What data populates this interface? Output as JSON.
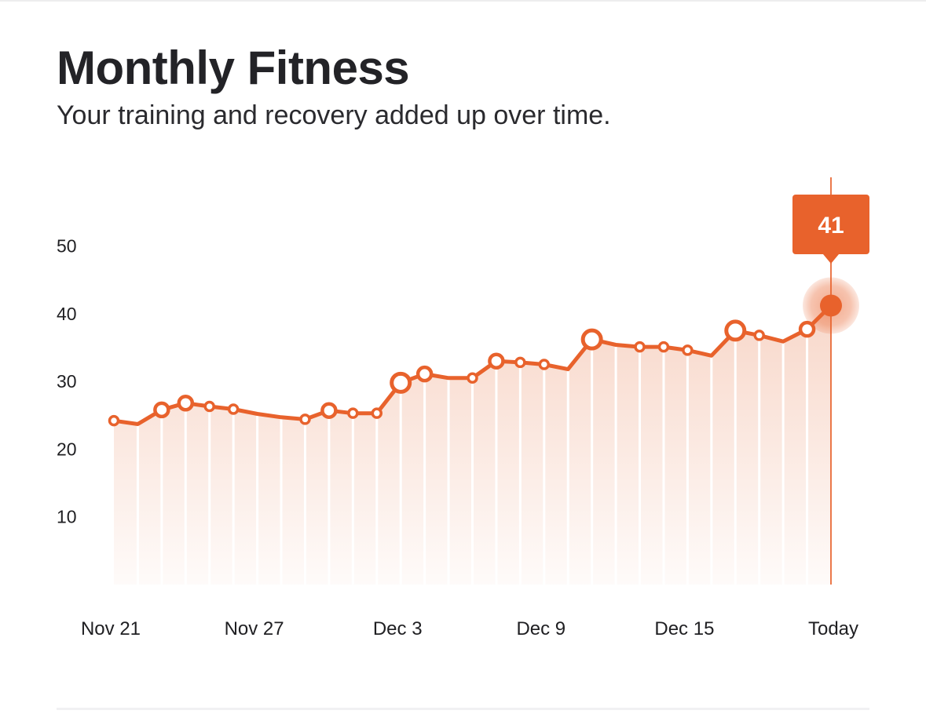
{
  "header": {
    "title": "Monthly Fitness",
    "subtitle": "Your training and recovery added up over time."
  },
  "colors": {
    "accent": "#e8622c",
    "text": "#232327"
  },
  "chart_data": {
    "type": "line",
    "title": "Monthly Fitness",
    "subtitle": "Your training and recovery added up over time.",
    "xlabel": "",
    "ylabel": "",
    "ylim": [
      0,
      50
    ],
    "yticks": [
      10,
      20,
      30,
      40,
      50
    ],
    "x_tick_labels": [
      {
        "day": 0,
        "label": "Nov 21"
      },
      {
        "day": 6,
        "label": "Nov 27"
      },
      {
        "day": 12,
        "label": "Dec 3"
      },
      {
        "day": 18,
        "label": "Dec 9"
      },
      {
        "day": 24,
        "label": "Dec 15"
      },
      {
        "day": 30,
        "label": "Today"
      }
    ],
    "grid": false,
    "legend": "none",
    "points": [
      {
        "day": 0,
        "value": 24.2,
        "marker": "small"
      },
      {
        "day": 1,
        "value": 23.7,
        "marker": "none"
      },
      {
        "day": 2,
        "value": 25.8,
        "marker": "medium"
      },
      {
        "day": 3,
        "value": 26.8,
        "marker": "medium"
      },
      {
        "day": 4,
        "value": 26.3,
        "marker": "small"
      },
      {
        "day": 5,
        "value": 25.9,
        "marker": "small"
      },
      {
        "day": 6,
        "value": 25.2,
        "marker": "none"
      },
      {
        "day": 7,
        "value": 24.7,
        "marker": "none"
      },
      {
        "day": 8,
        "value": 24.4,
        "marker": "small"
      },
      {
        "day": 9,
        "value": 25.7,
        "marker": "medium"
      },
      {
        "day": 10,
        "value": 25.3,
        "marker": "small"
      },
      {
        "day": 11,
        "value": 25.3,
        "marker": "small"
      },
      {
        "day": 12,
        "value": 29.8,
        "marker": "large"
      },
      {
        "day": 13,
        "value": 31.1,
        "marker": "medium"
      },
      {
        "day": 14,
        "value": 30.5,
        "marker": "none"
      },
      {
        "day": 15,
        "value": 30.5,
        "marker": "small"
      },
      {
        "day": 16,
        "value": 33.0,
        "marker": "medium"
      },
      {
        "day": 17,
        "value": 32.8,
        "marker": "small"
      },
      {
        "day": 18,
        "value": 32.5,
        "marker": "small"
      },
      {
        "day": 19,
        "value": 31.8,
        "marker": "none"
      },
      {
        "day": 20,
        "value": 36.2,
        "marker": "large"
      },
      {
        "day": 21,
        "value": 35.4,
        "marker": "none"
      },
      {
        "day": 22,
        "value": 35.1,
        "marker": "small"
      },
      {
        "day": 23,
        "value": 35.1,
        "marker": "small"
      },
      {
        "day": 24,
        "value": 34.6,
        "marker": "small"
      },
      {
        "day": 25,
        "value": 33.8,
        "marker": "none"
      },
      {
        "day": 26,
        "value": 37.5,
        "marker": "large"
      },
      {
        "day": 27,
        "value": 36.8,
        "marker": "small"
      },
      {
        "day": 28,
        "value": 35.9,
        "marker": "none"
      },
      {
        "day": 29,
        "value": 37.7,
        "marker": "medium"
      },
      {
        "day": 30,
        "value": 41.2,
        "marker": "current"
      }
    ],
    "current": {
      "day": 30,
      "value": 41,
      "label": "41"
    }
  }
}
